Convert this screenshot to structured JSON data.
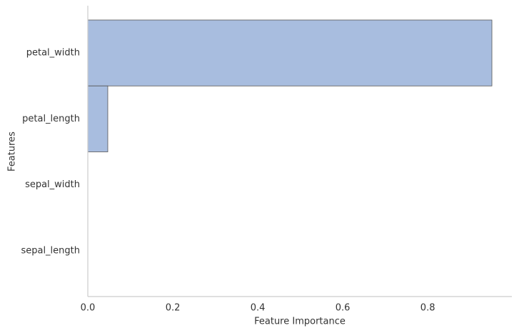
{
  "chart_data": {
    "type": "barh",
    "categories": [
      "petal_width",
      "petal_length",
      "sepal_width",
      "sepal_length"
    ],
    "values": [
      0.951,
      0.047,
      0,
      0
    ],
    "color": "#a8bddf",
    "edgecolor": "#555555",
    "xlabel": "Feature Importance",
    "ylabel": "Features",
    "xlim": [
      0,
      0.998
    ],
    "xticks": [
      {
        "value": 0,
        "label": "0.0"
      },
      0.2,
      0.4,
      0.6,
      0.8
    ],
    "grid": false
  }
}
